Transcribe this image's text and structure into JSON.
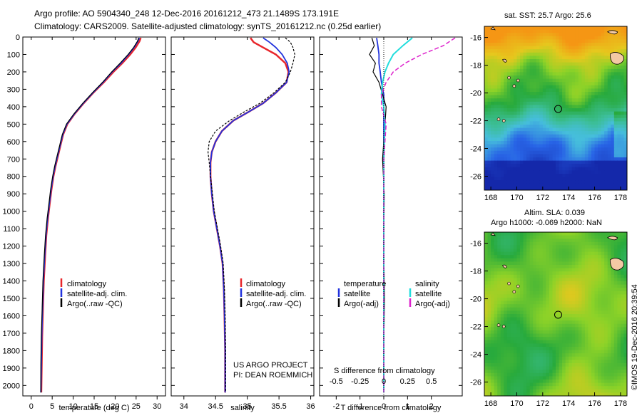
{
  "header": {
    "line1": "Argo profile: AO 5904340_248 12-Dec-2016 20161212_473 21.1489S 173.191E",
    "line2": "Climatology: CARS2009. Satellite-adjusted climatology: synTS_20161212.nc (0.25d earlier)"
  },
  "colors": {
    "climatology": "#e8262b",
    "satellite": "#2233dd",
    "argo": "#000000",
    "sal_satellite": "#22dddd",
    "sal_argo": "#dd22cc"
  },
  "chart_data": [
    {
      "type": "line",
      "name": "temperature-panel",
      "xlabel": "temperature (deg C)",
      "xticks": [
        0,
        5,
        10,
        15,
        20,
        25,
        30
      ],
      "xlim": [
        -2,
        32
      ],
      "ylim": [
        2060,
        0
      ],
      "yticks": [
        0,
        100,
        200,
        300,
        400,
        500,
        600,
        700,
        800,
        900,
        1000,
        1100,
        1200,
        1300,
        1400,
        1500,
        1600,
        1700,
        1800,
        1900,
        2000
      ],
      "legend": [
        "climatology",
        "satellite-adj. clim.",
        "Argo(..raw -QC)"
      ],
      "series": [
        {
          "name": "climatology",
          "x": [
            26.1,
            25.8,
            24.9,
            23.6,
            21.7,
            19.6,
            17.3,
            14.8,
            12.5,
            10.4,
            8.6,
            7.6,
            7.0,
            6.4,
            5.8,
            5.3,
            4.8,
            4.4,
            4.0,
            3.6,
            3.3,
            3.0,
            2.8,
            2.6,
            2.5,
            2.4
          ],
          "y": [
            5,
            25,
            60,
            100,
            150,
            200,
            260,
            320,
            380,
            440,
            500,
            560,
            620,
            680,
            740,
            800,
            880,
            960,
            1040,
            1140,
            1260,
            1400,
            1560,
            1720,
            1880,
            2040
          ]
        },
        {
          "name": "satellite-adj. clim.",
          "x": [
            25.8,
            25.4,
            24.5,
            23.2,
            21.4,
            19.3,
            17.1,
            14.7,
            12.4,
            10.3,
            8.5,
            7.5,
            6.9,
            6.3,
            5.7,
            5.2,
            4.7,
            4.3,
            3.9,
            3.5,
            3.2,
            2.9,
            2.7,
            2.5,
            2.4,
            2.3
          ],
          "y": [
            5,
            25,
            60,
            100,
            150,
            200,
            260,
            320,
            380,
            440,
            500,
            560,
            620,
            680,
            740,
            800,
            880,
            960,
            1040,
            1140,
            1260,
            1400,
            1560,
            1720,
            1880,
            2040
          ]
        },
        {
          "name": "Argo(..raw -QC)",
          "x": [
            25.6,
            25.3,
            24.4,
            23.1,
            21.2,
            19.2,
            17.0,
            14.6,
            12.3,
            10.2,
            8.4,
            7.4,
            6.8,
            6.2,
            5.6,
            5.1,
            4.6,
            4.2,
            3.8,
            3.4,
            3.1,
            2.8,
            2.6,
            2.4,
            2.3,
            2.3
          ],
          "y": [
            5,
            25,
            60,
            100,
            150,
            200,
            260,
            320,
            380,
            440,
            500,
            560,
            620,
            680,
            740,
            800,
            880,
            960,
            1040,
            1140,
            1260,
            1400,
            1560,
            1720,
            1880,
            2040
          ]
        }
      ]
    },
    {
      "type": "line",
      "name": "salinity-panel",
      "xlabel": "salinity",
      "xticks": [
        34,
        34.5,
        35,
        35.5,
        36
      ],
      "xlim": [
        33.8,
        36.05
      ],
      "ylim": [
        2060,
        0
      ],
      "legend": [
        "climatology",
        "satellite-adj. clim.",
        "Argo(..raw -QC)"
      ],
      "annotation": [
        "US ARGO PROJECT",
        "PI: DEAN ROEMMICH"
      ],
      "series": [
        {
          "name": "climatology",
          "x": [
            35.05,
            35.1,
            35.25,
            35.45,
            35.6,
            35.65,
            35.62,
            35.45,
            35.25,
            35.02,
            34.78,
            34.6,
            34.5,
            34.44,
            34.42,
            34.42,
            34.44,
            34.47,
            34.52,
            34.57,
            34.61,
            34.63,
            34.64,
            34.65,
            34.65
          ],
          "y": [
            5,
            30,
            60,
            100,
            150,
            200,
            260,
            320,
            380,
            430,
            480,
            540,
            600,
            660,
            720,
            800,
            900,
            1000,
            1100,
            1200,
            1300,
            1450,
            1600,
            1800,
            2040
          ]
        },
        {
          "name": "satellite-adj. clim.",
          "x": [
            35.25,
            35.35,
            35.45,
            35.55,
            35.63,
            35.66,
            35.62,
            35.45,
            35.25,
            35.02,
            34.78,
            34.6,
            34.5,
            34.44,
            34.42,
            34.42,
            34.44,
            34.47,
            34.52,
            34.57,
            34.61,
            34.63,
            34.64,
            34.65,
            34.65
          ],
          "y": [
            5,
            30,
            60,
            100,
            150,
            200,
            260,
            320,
            380,
            430,
            480,
            540,
            600,
            660,
            720,
            800,
            900,
            1000,
            1100,
            1200,
            1300,
            1450,
            1600,
            1800,
            2040
          ]
        },
        {
          "name": "Argo(..raw -QC)",
          "x": [
            35.6,
            35.68,
            35.72,
            35.75,
            35.72,
            35.68,
            35.6,
            35.42,
            35.2,
            34.95,
            34.72,
            34.5,
            34.4,
            34.38,
            34.4,
            34.42,
            34.45,
            34.48,
            34.53,
            34.58,
            34.62,
            34.64,
            34.65,
            34.66,
            34.66
          ],
          "y": [
            5,
            30,
            60,
            100,
            150,
            200,
            260,
            320,
            380,
            430,
            480,
            540,
            600,
            660,
            720,
            800,
            900,
            1000,
            1100,
            1200,
            1300,
            1450,
            1600,
            1800,
            2040
          ]
        }
      ]
    },
    {
      "type": "line",
      "name": "difference-panel",
      "xlabel": "T difference from climatology",
      "x2label": "S difference from climatology",
      "xticks": [
        -2,
        -1,
        0,
        1,
        2
      ],
      "x2ticks": [
        "-0.5",
        "-0.25",
        "0",
        "0.25",
        "0.5"
      ],
      "xlim": [
        -2.7,
        3.3
      ],
      "ylim": [
        2060,
        0
      ],
      "legend_temperature": [
        "temperature",
        "satellite",
        "Argo(-adj)"
      ],
      "legend_salinity": [
        "salinity",
        "satellite",
        "Argo(-adj)"
      ],
      "series": [
        {
          "name": "temperature satellite",
          "x": [
            -0.3,
            -0.25,
            -0.2,
            -0.2,
            -0.15,
            -0.1,
            0,
            0,
            0,
            0,
            0,
            0,
            0,
            0,
            0
          ],
          "y": [
            5,
            50,
            100,
            150,
            200,
            260,
            330,
            400,
            500,
            700,
            900,
            1200,
            1500,
            1800,
            2040
          ]
        },
        {
          "name": "temperature Argo(-adj)",
          "x": [
            -0.5,
            -0.4,
            -0.6,
            -0.35,
            -0.45,
            -0.2,
            -0.05,
            0.1,
            0.05,
            -0.05,
            0.02,
            0,
            0.03,
            0,
            0
          ],
          "y": [
            5,
            50,
            100,
            150,
            200,
            260,
            330,
            400,
            500,
            700,
            900,
            1200,
            1500,
            1800,
            2040
          ]
        },
        {
          "name": "salinity satellite",
          "x": [
            1.2,
            0.8,
            0.4,
            0.2,
            0.05,
            -0.05,
            -0.1,
            0,
            0.05,
            0,
            0,
            0,
            0,
            0,
            0
          ],
          "y": [
            5,
            50,
            100,
            150,
            200,
            260,
            330,
            400,
            500,
            700,
            900,
            1200,
            1500,
            1800,
            2040
          ]
        },
        {
          "name": "salinity Argo(-adj)",
          "x": [
            3.0,
            2.5,
            1.6,
            0.9,
            0.4,
            0.1,
            -0.1,
            -0.1,
            0.1,
            0,
            0,
            0,
            0,
            0,
            0
          ],
          "y": [
            5,
            50,
            100,
            150,
            200,
            260,
            330,
            400,
            500,
            700,
            900,
            1200,
            1500,
            1800,
            2040
          ]
        }
      ]
    },
    {
      "type": "heatmap",
      "name": "sst-map",
      "title": "sat. SST: 25.7 Argo: 25.6",
      "xticks": [
        168,
        170,
        172,
        174,
        176,
        178
      ],
      "yticks": [
        -16,
        -18,
        -20,
        -22,
        -24,
        -26
      ],
      "xlim": [
        167.5,
        178.5
      ],
      "ylim": [
        -27,
        -15.2
      ],
      "marker": [
        173.19,
        -21.15
      ]
    },
    {
      "type": "heatmap",
      "name": "sla-map",
      "title1": "Altim. SLA: 0.039",
      "title2": "Argo h1000: -0.069 h2000: NaN",
      "xticks": [
        168,
        170,
        172,
        174,
        176,
        178
      ],
      "yticks": [
        -16,
        -18,
        -20,
        -22,
        -24,
        -26
      ],
      "xlim": [
        167.5,
        178.5
      ],
      "ylim": [
        -27,
        -15.2
      ],
      "marker": [
        173.19,
        -21.15
      ]
    }
  ],
  "footer": {
    "credit": "©IMOS 19-Dec-2016 20:39:54"
  }
}
